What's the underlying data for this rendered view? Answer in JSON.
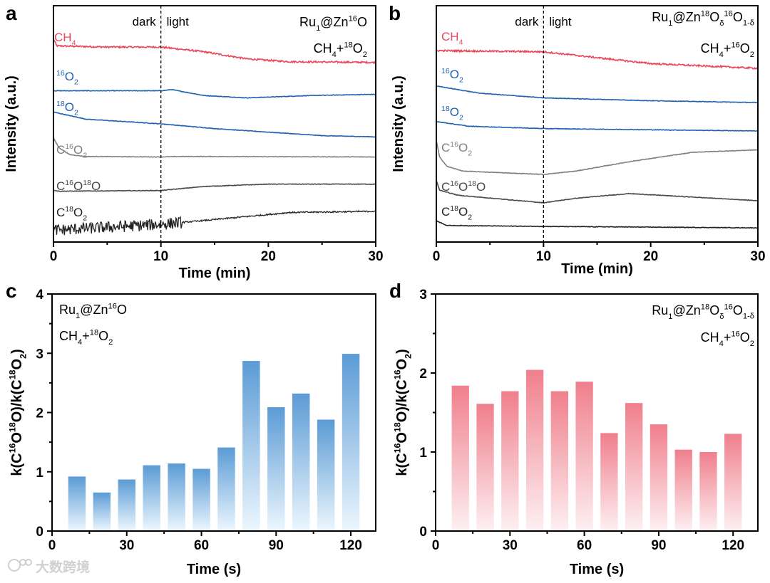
{
  "watermark": "大数跨境",
  "chart_data": [
    {
      "panel": "a",
      "type": "line",
      "xlabel": "Time (min)",
      "ylabel": "Intensity (a.u.)",
      "xlim": [
        0,
        30
      ],
      "ylim": [
        0,
        100
      ],
      "xticks": [
        "0",
        "10",
        "20",
        "30"
      ],
      "divider": {
        "x": 10,
        "left_label": "dark",
        "right_label": "light"
      },
      "annotation": [
        [
          [
            "Ru",
            ""
          ],
          [
            "1",
            "sub"
          ],
          [
            "@Zn",
            ""
          ],
          [
            "16",
            "sup"
          ],
          [
            "O",
            ""
          ]
        ],
        [
          [
            "CH",
            ""
          ],
          [
            "4",
            "sub"
          ],
          [
            "+",
            ""
          ],
          [
            "18",
            "sup"
          ],
          [
            "O",
            ""
          ],
          [
            "2",
            "sub"
          ]
        ]
      ],
      "series": [
        {
          "name": [
            [
              "CH",
              ""
            ],
            [
              "4",
              "sub"
            ]
          ],
          "color": "#e8485a",
          "points": [
            [
              0,
              86
            ],
            [
              0.3,
              83
            ],
            [
              5,
              82.5
            ],
            [
              10,
              82.5
            ],
            [
              14,
              80.5
            ],
            [
              18,
              77.5
            ],
            [
              22,
              76.3
            ],
            [
              30,
              76
            ]
          ]
        },
        {
          "name": [
            [
              "16",
              "sup"
            ],
            [
              "O",
              ""
            ],
            [
              "2",
              "sub"
            ]
          ],
          "color": "#1f62b0",
          "points": [
            [
              0,
              64
            ],
            [
              10,
              64
            ],
            [
              11,
              64.5
            ],
            [
              14,
              62
            ],
            [
              18,
              61
            ],
            [
              24,
              62
            ],
            [
              30,
              62.5
            ]
          ]
        },
        {
          "name": [
            [
              "18",
              "sup"
            ],
            [
              "O",
              ""
            ],
            [
              "2",
              "sub"
            ]
          ],
          "color": "#1f62b0",
          "points": [
            [
              0,
              55
            ],
            [
              3,
              52
            ],
            [
              10,
              50
            ],
            [
              15,
              48
            ],
            [
              25,
              45
            ],
            [
              30,
              44.5
            ]
          ]
        },
        {
          "name": [
            [
              "C",
              ""
            ],
            [
              "16",
              "sup"
            ],
            [
              "O",
              ""
            ],
            [
              "2",
              "sub"
            ]
          ],
          "color": "#808080",
          "points": [
            [
              0,
              44
            ],
            [
              0.5,
              40
            ],
            [
              1.5,
              37
            ],
            [
              3,
              36.2
            ],
            [
              10,
              36
            ],
            [
              12,
              36.2
            ],
            [
              30,
              36
            ]
          ]
        },
        {
          "name": [
            [
              "C",
              ""
            ],
            [
              "16",
              "sup"
            ],
            [
              "O",
              ""
            ],
            [
              "18",
              "sup"
            ],
            [
              "O",
              ""
            ]
          ],
          "color": "#4a4a4a",
          "points": [
            [
              0,
              22
            ],
            [
              0.5,
              21.5
            ],
            [
              10,
              21.8
            ],
            [
              14,
              23.5
            ],
            [
              20,
              24.5
            ],
            [
              30,
              24.5
            ]
          ]
        },
        {
          "name": [
            [
              "C",
              ""
            ],
            [
              "18",
              "sup"
            ],
            [
              "O",
              ""
            ],
            [
              "2",
              "sub"
            ]
          ],
          "color": "#222222",
          "points": [
            [
              0,
              5
            ],
            [
              10,
              7.5
            ],
            [
              15,
              9.5
            ],
            [
              22,
              12.5
            ],
            [
              30,
              13
            ]
          ]
        }
      ]
    },
    {
      "panel": "b",
      "type": "line",
      "xlabel": "Time (min)",
      "ylabel": "Intensity (a.u.)",
      "xlim": [
        0,
        30
      ],
      "ylim": [
        0,
        100
      ],
      "xticks": [
        "0",
        "10",
        "20",
        "30"
      ],
      "divider": {
        "x": 10,
        "left_label": "dark",
        "right_label": "light"
      },
      "annotation": [
        [
          [
            "Ru",
            ""
          ],
          [
            "1",
            "sub"
          ],
          [
            "@Zn",
            ""
          ],
          [
            "18",
            "sup"
          ],
          [
            "O",
            ""
          ],
          [
            "δ",
            "sub"
          ],
          [
            "16",
            "sup"
          ],
          [
            "O",
            ""
          ],
          [
            "1-δ",
            "sub"
          ]
        ],
        [
          [
            "CH",
            ""
          ],
          [
            "4",
            "sub"
          ],
          [
            "+",
            ""
          ],
          [
            "16",
            "sup"
          ],
          [
            "O",
            ""
          ],
          [
            "2",
            "sub"
          ]
        ]
      ],
      "series": [
        {
          "name": [
            [
              "CH",
              ""
            ],
            [
              "4",
              "sub"
            ]
          ],
          "color": "#e8485a",
          "points": [
            [
              0,
              81
            ],
            [
              10,
              80.5
            ],
            [
              14,
              78.5
            ],
            [
              20,
              75.5
            ],
            [
              30,
              73.5
            ]
          ]
        },
        {
          "name": [
            [
              "16",
              "sup"
            ],
            [
              "O",
              ""
            ],
            [
              "2",
              "sub"
            ]
          ],
          "color": "#1f62b0",
          "points": [
            [
              0,
              66
            ],
            [
              4,
              63
            ],
            [
              10,
              61
            ],
            [
              20,
              59.8
            ],
            [
              30,
              59
            ]
          ]
        },
        {
          "name": [
            [
              "18",
              "sup"
            ],
            [
              "O",
              ""
            ],
            [
              "2",
              "sub"
            ]
          ],
          "color": "#1f62b0",
          "points": [
            [
              0,
              51
            ],
            [
              3,
              49
            ],
            [
              10,
              48
            ],
            [
              30,
              47
            ]
          ]
        },
        {
          "name": [
            [
              "C",
              ""
            ],
            [
              "16",
              "sup"
            ],
            [
              "O",
              ""
            ],
            [
              "2",
              "sub"
            ]
          ],
          "color": "#808080",
          "points": [
            [
              0,
              43
            ],
            [
              0.3,
              36
            ],
            [
              1,
              32
            ],
            [
              2.5,
              30
            ],
            [
              10,
              28.6
            ],
            [
              13,
              30
            ],
            [
              18,
              34
            ],
            [
              24,
              38
            ],
            [
              30,
              39
            ]
          ]
        },
        {
          "name": [
            [
              "C",
              ""
            ],
            [
              "16",
              "sup"
            ],
            [
              "O",
              ""
            ],
            [
              "18",
              "sup"
            ],
            [
              "O",
              ""
            ]
          ],
          "color": "#4a4a4a",
          "points": [
            [
              0,
              26
            ],
            [
              0.3,
              22
            ],
            [
              2,
              19.8
            ],
            [
              10,
              16.6
            ],
            [
              13,
              18.5
            ],
            [
              18,
              20.5
            ],
            [
              24,
              19
            ],
            [
              30,
              17.5
            ]
          ]
        },
        {
          "name": [
            [
              "C",
              ""
            ],
            [
              "18",
              "sup"
            ],
            [
              "O",
              ""
            ],
            [
              "2",
              "sub"
            ]
          ],
          "color": "#222222",
          "points": [
            [
              0,
              9
            ],
            [
              1,
              7
            ],
            [
              10,
              6.6
            ],
            [
              30,
              6
            ]
          ]
        }
      ]
    },
    {
      "panel": "c",
      "type": "bar",
      "xlabel": "Time (s)",
      "ylabel": [
        [
          "k(C",
          ""
        ],
        [
          "16",
          "sup"
        ],
        [
          "O",
          ""
        ],
        [
          "18",
          "sup"
        ],
        [
          "O)/k(C",
          ""
        ],
        [
          "18",
          "sup"
        ],
        [
          "O",
          ""
        ],
        [
          "2",
          "sub"
        ],
        [
          ")",
          ""
        ]
      ],
      "xlim": [
        0,
        130
      ],
      "ylim": [
        0,
        4
      ],
      "xticks": [
        "0",
        "30",
        "60",
        "90",
        "120"
      ],
      "yticks": [
        "0",
        "1",
        "2",
        "3",
        "4"
      ],
      "annotation": [
        [
          [
            "Ru",
            ""
          ],
          [
            "1",
            "sub"
          ],
          [
            "@Zn",
            ""
          ],
          [
            "16",
            "sup"
          ],
          [
            "O",
            ""
          ]
        ],
        [
          [
            "CH",
            ""
          ],
          [
            "4",
            "sub"
          ],
          [
            "+",
            ""
          ],
          [
            "18",
            "sup"
          ],
          [
            "O",
            ""
          ],
          [
            "2",
            "sub"
          ]
        ]
      ],
      "color_top": "#5b9bd5",
      "color_bottom": "#edf7fe",
      "x": [
        10,
        20,
        30,
        40,
        50,
        60,
        70,
        80,
        90,
        100,
        110,
        120
      ],
      "values": [
        0.92,
        0.65,
        0.87,
        1.11,
        1.14,
        1.05,
        1.41,
        2.87,
        2.09,
        2.32,
        1.88,
        2.99
      ]
    },
    {
      "panel": "d",
      "type": "bar",
      "xlabel": "Time (s)",
      "ylabel": [
        [
          "k(C",
          ""
        ],
        [
          "16",
          "sup"
        ],
        [
          "O",
          ""
        ],
        [
          "18",
          "sup"
        ],
        [
          "O)/k(C",
          ""
        ],
        [
          "16",
          "sup"
        ],
        [
          "O",
          ""
        ],
        [
          "2",
          "sub"
        ],
        [
          ")",
          ""
        ]
      ],
      "xlim": [
        0,
        130
      ],
      "ylim": [
        0,
        3
      ],
      "xticks": [
        "0",
        "30",
        "60",
        "90",
        "120"
      ],
      "yticks": [
        "0",
        "1",
        "2",
        "3"
      ],
      "annotation": [
        [
          [
            "Ru",
            ""
          ],
          [
            "1",
            "sub"
          ],
          [
            "@Zn",
            ""
          ],
          [
            "18",
            "sup"
          ],
          [
            "O",
            ""
          ],
          [
            "δ",
            "sub"
          ],
          [
            "16",
            "sup"
          ],
          [
            "O",
            ""
          ],
          [
            "1-δ",
            "sub"
          ]
        ],
        [
          [
            "CH",
            ""
          ],
          [
            "4",
            "sub"
          ],
          [
            "+",
            ""
          ],
          [
            "16",
            "sup"
          ],
          [
            "O",
            ""
          ],
          [
            "2",
            "sub"
          ]
        ]
      ],
      "color_top": "#f07f8c",
      "color_bottom": "#fdf0f2",
      "x": [
        10,
        20,
        30,
        40,
        50,
        60,
        70,
        80,
        90,
        100,
        110,
        120
      ],
      "values": [
        1.84,
        1.61,
        1.77,
        2.04,
        1.77,
        1.89,
        1.24,
        1.62,
        1.35,
        1.03,
        1.0,
        1.23
      ]
    }
  ]
}
